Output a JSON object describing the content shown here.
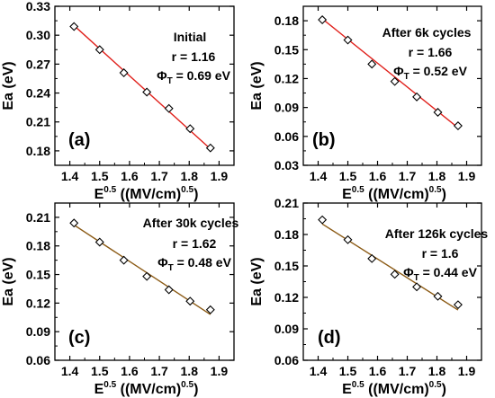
{
  "colors": {
    "axis": "#000000",
    "marker": "#000000",
    "fit_red": "#e0201b",
    "fit_brown": "#8b5a14"
  },
  "chart_data": [
    {
      "panel": "(a)",
      "type": "scatter",
      "x": [
        1.414,
        1.5,
        1.581,
        1.658,
        1.732,
        1.803,
        1.871
      ],
      "y": [
        0.309,
        0.285,
        0.261,
        0.241,
        0.224,
        0.203,
        0.183
      ],
      "fit": {
        "x": [
          1.414,
          1.871
        ],
        "y": [
          0.31,
          0.182
        ],
        "color": "red"
      },
      "xlim": [
        1.35,
        1.95
      ],
      "ylim": [
        0.165,
        0.33
      ],
      "xticks": [
        "1.4",
        "1.5",
        "1.6",
        "1.7",
        "1.8",
        "1.9"
      ],
      "yticks": [
        "0.18",
        "0.21",
        "0.24",
        "0.27",
        "0.30",
        "0.33"
      ],
      "ytick_values": [
        0.18,
        0.21,
        0.24,
        0.27,
        0.3,
        0.33
      ],
      "ylabel": "Ea (eV)",
      "xlabel": {
        "main": "E",
        "sup": "0.5",
        "paren": " ((MV/cm)",
        "paren_sup": "0.5",
        "close": ")"
      },
      "annotations": {
        "condition": "Initial",
        "r": "r = 1.16",
        "phi_symbol": "Φ",
        "phi_sub": "T",
        "phi_value": " = 0.69 eV"
      }
    },
    {
      "panel": "(b)",
      "type": "scatter",
      "x": [
        1.414,
        1.5,
        1.581,
        1.658,
        1.732,
        1.803,
        1.871
      ],
      "y": [
        0.181,
        0.16,
        0.135,
        0.117,
        0.101,
        0.085,
        0.071
      ],
      "fit": {
        "x": [
          1.414,
          1.871
        ],
        "y": [
          0.182,
          0.069
        ],
        "color": "red"
      },
      "xlim": [
        1.35,
        1.95
      ],
      "ylim": [
        0.03,
        0.195
      ],
      "xticks": [
        "1.4",
        "1.5",
        "1.6",
        "1.7",
        "1.8",
        "1.9"
      ],
      "yticks": [
        "0.03",
        "0.06",
        "0.09",
        "0.12",
        "0.15",
        "0.18"
      ],
      "ytick_values": [
        0.03,
        0.06,
        0.09,
        0.12,
        0.15,
        0.18
      ],
      "ylabel": "Ea (eV)",
      "xlabel": {
        "main": "E",
        "sup": "0.5",
        "paren": " ((MV/cm)",
        "paren_sup": "0.5",
        "close": ")"
      },
      "annotations": {
        "condition": "After 6k cycles",
        "r": "r = 1.66",
        "phi_symbol": "Φ",
        "phi_sub": "T",
        "phi_value": " = 0.52 eV"
      }
    },
    {
      "panel": "(c)",
      "type": "scatter",
      "x": [
        1.414,
        1.5,
        1.581,
        1.658,
        1.732,
        1.803,
        1.871
      ],
      "y": [
        0.204,
        0.184,
        0.165,
        0.148,
        0.134,
        0.122,
        0.113
      ],
      "fit": {
        "x": [
          1.414,
          1.871
        ],
        "y": [
          0.202,
          0.108
        ],
        "color": "brown"
      },
      "xlim": [
        1.35,
        1.95
      ],
      "ylim": [
        0.06,
        0.225
      ],
      "xticks": [
        "1.4",
        "1.5",
        "1.6",
        "1.7",
        "1.8",
        "1.9"
      ],
      "yticks": [
        "0.06",
        "0.09",
        "0.12",
        "0.15",
        "0.18",
        "0.21"
      ],
      "ytick_values": [
        0.06,
        0.09,
        0.12,
        0.15,
        0.18,
        0.21
      ],
      "ylabel": "Ea (eV)",
      "xlabel": {
        "main": "E",
        "sup": "0.5",
        "paren": " ((MV/cm)",
        "paren_sup": "0.5",
        "close": ")"
      },
      "annotations": {
        "condition": "After 30k cycles",
        "r": "r = 1.62",
        "phi_symbol": "Φ",
        "phi_sub": "T",
        "phi_value": " = 0.48 eV"
      }
    },
    {
      "panel": "(d)",
      "type": "scatter",
      "x": [
        1.414,
        1.5,
        1.581,
        1.658,
        1.732,
        1.803,
        1.871
      ],
      "y": [
        0.194,
        0.175,
        0.157,
        0.142,
        0.13,
        0.121,
        0.113
      ],
      "fit": {
        "x": [
          1.414,
          1.871
        ],
        "y": [
          0.19,
          0.108
        ],
        "color": "brown"
      },
      "xlim": [
        1.35,
        1.95
      ],
      "ylim": [
        0.06,
        0.21
      ],
      "xticks": [
        "1.4",
        "1.5",
        "1.6",
        "1.7",
        "1.8",
        "1.9"
      ],
      "yticks": [
        "0.06",
        "0.09",
        "0.12",
        "0.15",
        "0.18",
        "0.21"
      ],
      "ytick_values": [
        0.06,
        0.09,
        0.12,
        0.15,
        0.18,
        0.21
      ],
      "ylabel": "Ea (eV)",
      "xlabel": {
        "main": "E",
        "sup": "0.5",
        "paren": " ((MV/cm)",
        "paren_sup": "0.5",
        "close": ")"
      },
      "annotations": {
        "condition": "After 126k cycles",
        "r": "r = 1.6",
        "phi_symbol": "Φ",
        "phi_sub": "T",
        "phi_value": " = 0.44 eV"
      }
    }
  ]
}
